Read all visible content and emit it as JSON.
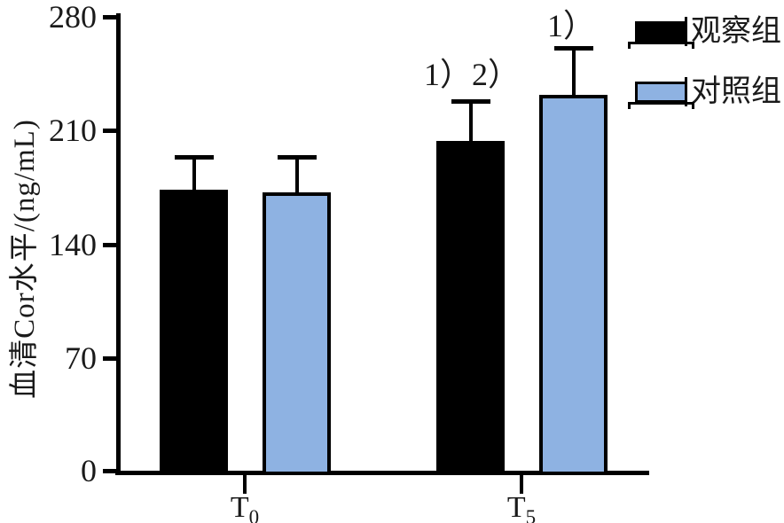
{
  "chart_data": {
    "type": "bar",
    "title": "",
    "xlabel": "",
    "ylabel": "血清Cor水平/(ng/mL)",
    "ylim": [
      0,
      280
    ],
    "yticks": [
      280,
      210,
      140,
      70,
      0
    ],
    "grid": false,
    "legend_position": "top-right",
    "categories": [
      {
        "id": "T0",
        "base": "T",
        "sub": "0"
      },
      {
        "id": "T5",
        "base": "T",
        "sub": "5"
      }
    ],
    "series": [
      {
        "name": "观察组",
        "color": "#000000",
        "values": [
          174,
          204
        ],
        "errors": [
          20,
          24
        ]
      },
      {
        "name": "对照组",
        "color": "#8EB2E2",
        "values": [
          172,
          232
        ],
        "errors": [
          22,
          29
        ]
      }
    ],
    "annotations": [
      {
        "text": "1）2）",
        "series": "观察组",
        "category": "T5"
      },
      {
        "text": "1）",
        "series": "对照组",
        "category": "T5"
      }
    ]
  }
}
